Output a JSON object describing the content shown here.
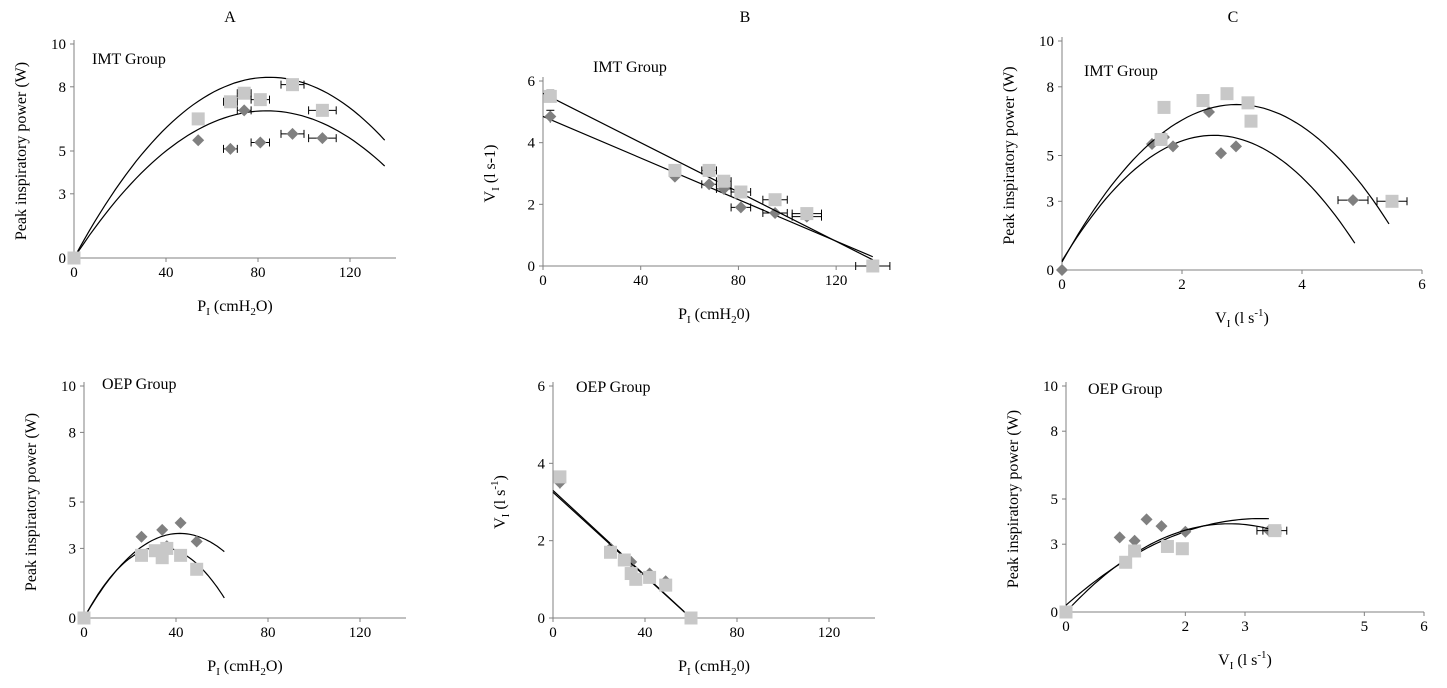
{
  "columns": [
    {
      "label": "A"
    },
    {
      "label": "B"
    },
    {
      "label": "C"
    }
  ],
  "colors": {
    "trial1": "#808080",
    "trial2": "#c8c8c8",
    "axis": "#808080",
    "text": "#000000"
  },
  "chart_data": [
    {
      "type": "scatter",
      "title": "IMT Group",
      "ylabel": "Peak inspiratory power (W)",
      "xlabel": "P",
      "xlabel_sub": "I",
      "xlabel_tail": " (cmH",
      "xlabel_sub2": "2",
      "xlabel_end": "O)",
      "xlim": [
        0,
        140
      ],
      "ylim": [
        0,
        10
      ],
      "xticks": [
        0,
        40,
        80,
        120
      ],
      "yticks": [
        0,
        3,
        5,
        8,
        10
      ],
      "series": [
        {
          "marker": "diamond",
          "color": "#808080",
          "points": [
            {
              "x": 0,
              "y": 0
            },
            {
              "x": 54,
              "y": 5.5
            },
            {
              "x": 68,
              "y": 5.1,
              "xerr": 3
            },
            {
              "x": 74,
              "y": 6.9,
              "xerr": 3
            },
            {
              "x": 81,
              "y": 5.4,
              "xerr": 4
            },
            {
              "x": 95,
              "y": 5.8,
              "xerr": 5
            },
            {
              "x": 108,
              "y": 5.6,
              "xerr": 6
            }
          ],
          "curve": {
            "kind": "poly2",
            "a": -0.00098,
            "b": 0.1642,
            "c": 0
          }
        },
        {
          "marker": "square",
          "color": "#c8c8c8",
          "points": [
            {
              "x": 0,
              "y": 0
            },
            {
              "x": 54,
              "y": 6.5
            },
            {
              "x": 68,
              "y": 7.3,
              "xerr": 3
            },
            {
              "x": 74,
              "y": 7.7,
              "xerr": 3
            },
            {
              "x": 81,
              "y": 7.4,
              "xerr": 4
            },
            {
              "x": 95,
              "y": 8.1,
              "xerr": 5
            },
            {
              "x": 108,
              "y": 6.9,
              "xerr": 6
            }
          ],
          "curve": {
            "kind": "poly2",
            "a": -0.00117,
            "b": 0.1988,
            "c": 0
          }
        }
      ]
    },
    {
      "type": "scatter",
      "title": "IMT Group",
      "ylabel": "V",
      "ylabel_sub": "I",
      "ylabel_tail": " (l s-1)",
      "xlabel": "P",
      "xlabel_sub": "I",
      "xlabel_tail": " (cmH",
      "xlabel_sub2": "2",
      "xlabel_end": "0)",
      "xlim": [
        0,
        140
      ],
      "ylim": [
        0,
        6
      ],
      "xticks": [
        0,
        40,
        80,
        120
      ],
      "yticks": [
        0,
        2,
        4,
        6
      ],
      "series": [
        {
          "marker": "diamond",
          "color": "#808080",
          "points": [
            {
              "x": 3,
              "y": 4.85,
              "yerr": 0.2
            },
            {
              "x": 54,
              "y": 2.9
            },
            {
              "x": 68,
              "y": 2.65,
              "xerr": 3
            },
            {
              "x": 74,
              "y": 2.5,
              "xerr": 3
            },
            {
              "x": 81,
              "y": 1.9,
              "xerr": 4
            },
            {
              "x": 95,
              "y": 1.72,
              "xerr": 5
            },
            {
              "x": 108,
              "y": 1.6,
              "xerr": 6
            }
          ],
          "curve": {
            "kind": "line",
            "x0": 0,
            "y0": 4.85,
            "x1": 135,
            "y1": 0.3
          }
        },
        {
          "marker": "square",
          "color": "#c8c8c8",
          "points": [
            {
              "x": 3,
              "y": 5.5,
              "yerr": 0.2
            },
            {
              "x": 54,
              "y": 3.1
            },
            {
              "x": 68,
              "y": 3.1,
              "xerr": 3
            },
            {
              "x": 74,
              "y": 2.75,
              "xerr": 3
            },
            {
              "x": 81,
              "y": 2.4,
              "xerr": 4
            },
            {
              "x": 95,
              "y": 2.15,
              "xerr": 5
            },
            {
              "x": 108,
              "y": 1.7,
              "xerr": 6
            },
            {
              "x": 135,
              "y": 0,
              "xerr": 7
            }
          ],
          "curve": {
            "kind": "line",
            "x0": 0,
            "y0": 5.6,
            "x1": 135,
            "y1": 0.2
          }
        }
      ]
    },
    {
      "type": "scatter",
      "title": "IMT Group",
      "ylabel": "Peak inspiratory power (W)",
      "xlabel": "V",
      "xlabel_sub": "I",
      "xlabel_tail": " (l s",
      "xlabel_sup": "-1",
      "xlabel_end": ")",
      "xlim": [
        0,
        6
      ],
      "ylim": [
        0,
        10
      ],
      "xticks": [
        0,
        2,
        4,
        6
      ],
      "yticks": [
        0,
        3,
        5,
        8,
        10
      ],
      "series": [
        {
          "marker": "diamond",
          "color": "#808080",
          "points": [
            {
              "x": 0,
              "y": 0
            },
            {
              "x": 1.5,
              "y": 5.5
            },
            {
              "x": 1.7,
              "y": 5.8
            },
            {
              "x": 1.85,
              "y": 5.4
            },
            {
              "x": 2.45,
              "y": 6.9
            },
            {
              "x": 2.65,
              "y": 5.1
            },
            {
              "x": 2.9,
              "y": 5.4
            },
            {
              "x": 4.85,
              "y": 3.05,
              "xerr": 0.25
            }
          ],
          "curve": {
            "kind": "poly2",
            "a": -0.855,
            "b": 4.33,
            "c": 0.4,
            "xmax": 4.88
          }
        },
        {
          "marker": "square",
          "color": "#c8c8c8",
          "points": [
            {
              "x": 1.65,
              "y": 5.7
            },
            {
              "x": 1.7,
              "y": 7.1
            },
            {
              "x": 2.35,
              "y": 7.4
            },
            {
              "x": 2.75,
              "y": 7.7
            },
            {
              "x": 3.1,
              "y": 7.3
            },
            {
              "x": 3.15,
              "y": 6.5
            },
            {
              "x": 5.5,
              "y": 3.0,
              "xerr": 0.25
            }
          ],
          "curve": {
            "kind": "poly2",
            "a": -0.81,
            "b": 4.72,
            "c": 0.35,
            "xmax": 5.45
          }
        }
      ]
    },
    {
      "type": "scatter",
      "title": "OEP Group",
      "ylabel": "Peak inspiratory power (W)",
      "xlabel": "P",
      "xlabel_sub": "I",
      "xlabel_tail": " (cmH",
      "xlabel_sub2": "2",
      "xlabel_end": "O)",
      "xlim": [
        0,
        140
      ],
      "ylim": [
        0,
        10
      ],
      "xticks": [
        0,
        40,
        80,
        120
      ],
      "yticks": [
        0,
        3,
        5,
        8,
        10
      ],
      "series": [
        {
          "marker": "diamond",
          "color": "#808080",
          "points": [
            {
              "x": 0,
              "y": 0
            },
            {
              "x": 25,
              "y": 3.5
            },
            {
              "x": 34,
              "y": 3.8
            },
            {
              "x": 36,
              "y": 3.1
            },
            {
              "x": 42,
              "y": 4.1
            },
            {
              "x": 49,
              "y": 3.3
            }
          ],
          "curve": {
            "kind": "poly2",
            "a": -0.0021,
            "b": 0.175,
            "c": 0,
            "xmax": 61
          }
        },
        {
          "marker": "square",
          "color": "#c8c8c8",
          "points": [
            {
              "x": 0,
              "y": 0
            },
            {
              "x": 25,
              "y": 2.7
            },
            {
              "x": 31,
              "y": 2.9
            },
            {
              "x": 34,
              "y": 2.6
            },
            {
              "x": 36,
              "y": 3.0
            },
            {
              "x": 42,
              "y": 2.7
            },
            {
              "x": 49,
              "y": 2.1
            }
          ],
          "curve": {
            "kind": "poly2",
            "a": -0.0028,
            "b": 0.185,
            "c": 0,
            "xmax": 61
          }
        }
      ]
    },
    {
      "type": "scatter",
      "title": "OEP Group",
      "ylabel": "V",
      "ylabel_sub": "I",
      "ylabel_tail": " (l s",
      "ylabel_sup": "-1",
      "ylabel_end": ")",
      "xlabel": "P",
      "xlabel_sub": "I",
      "xlabel_tail": " (cmH",
      "xlabel_sub2": "2",
      "xlabel_end": "0)",
      "xlim": [
        0,
        140
      ],
      "ylim": [
        0,
        6
      ],
      "xticks": [
        0,
        40,
        80,
        120
      ],
      "yticks": [
        0,
        2,
        4,
        6
      ],
      "series": [
        {
          "marker": "diamond",
          "color": "#808080",
          "points": [
            {
              "x": 3,
              "y": 3.5,
              "yerr": 0.15
            },
            {
              "x": 25,
              "y": 1.8
            },
            {
              "x": 34,
              "y": 1.45
            },
            {
              "x": 42,
              "y": 1.15
            },
            {
              "x": 49,
              "y": 0.95
            },
            {
              "x": 60,
              "y": 0
            }
          ],
          "curve": {
            "kind": "line",
            "x0": 0,
            "y0": 3.3,
            "x1": 60,
            "y1": 0
          }
        },
        {
          "marker": "square",
          "color": "#c8c8c8",
          "points": [
            {
              "x": 3,
              "y": 3.65,
              "yerr": 0.15
            },
            {
              "x": 25,
              "y": 1.7
            },
            {
              "x": 31,
              "y": 1.5
            },
            {
              "x": 34,
              "y": 1.15
            },
            {
              "x": 36,
              "y": 1.0
            },
            {
              "x": 42,
              "y": 1.05
            },
            {
              "x": 49,
              "y": 0.85
            },
            {
              "x": 60,
              "y": 0
            }
          ],
          "curve": {
            "kind": "line",
            "x0": 0,
            "y0": 3.25,
            "x1": 60,
            "y1": 0
          }
        }
      ]
    },
    {
      "type": "scatter",
      "title": "OEP Group",
      "ylabel": "Peak inspiratory power (W)",
      "xlabel": "V",
      "xlabel_sub": "I",
      "xlabel_tail": " (l s",
      "xlabel_sup": "-1",
      "xlabel_end": ")",
      "xlim": [
        0,
        6
      ],
      "ylim": [
        0,
        10
      ],
      "xticks": [
        0,
        2,
        3,
        5,
        6
      ],
      "yticks": [
        0,
        3,
        5,
        8,
        10
      ],
      "series": [
        {
          "marker": "diamond",
          "color": "#808080",
          "points": [
            {
              "x": 0.9,
              "y": 3.3
            },
            {
              "x": 1.15,
              "y": 3.15
            },
            {
              "x": 1.35,
              "y": 4.1
            },
            {
              "x": 1.6,
              "y": 3.8
            },
            {
              "x": 2.0,
              "y": 3.55
            },
            {
              "x": 3.4,
              "y": 3.6,
              "xerr": 0.2
            }
          ],
          "curve": {
            "kind": "poly2",
            "a": -0.36,
            "b": 2.35,
            "c": 0.3,
            "xmax": 3.4
          }
        },
        {
          "marker": "square",
          "color": "#c8c8c8",
          "points": [
            {
              "x": 0,
              "y": 0
            },
            {
              "x": 1.0,
              "y": 2.2
            },
            {
              "x": 1.15,
              "y": 2.7
            },
            {
              "x": 1.7,
              "y": 2.9
            },
            {
              "x": 1.95,
              "y": 2.8
            },
            {
              "x": 3.5,
              "y": 3.6,
              "xerr": 0.2
            }
          ],
          "curve": {
            "kind": "poly2",
            "a": -0.52,
            "b": 2.85,
            "c": 0.0,
            "xmax": 3.55
          }
        }
      ]
    }
  ]
}
